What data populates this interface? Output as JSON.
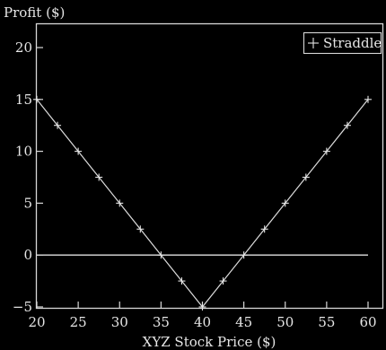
{
  "chart_data": {
    "type": "line",
    "title": "",
    "xlabel": "XYZ Stock Price ($)",
    "ylabel": "Profit ($)",
    "xlim": [
      20,
      60
    ],
    "ylim": [
      -5,
      23
    ],
    "x_ticks": [
      20,
      25,
      30,
      35,
      40,
      45,
      50,
      55,
      60
    ],
    "y_ticks": [
      -5,
      0,
      5,
      10,
      15,
      20
    ],
    "y_tick_labels": [
      "−5",
      "0",
      "5",
      "10",
      "15",
      "20"
    ],
    "x_tick_labels": [
      "20",
      "25",
      "30",
      "35",
      "40",
      "45",
      "50",
      "55",
      "60"
    ],
    "grid": false,
    "legend_position": "top-right",
    "reference_lines": [
      {
        "axis": "y",
        "value": 0
      }
    ],
    "series": [
      {
        "name": "Straddle",
        "marker": "plus",
        "color": "#dcdcdc",
        "x": [
          20,
          22.5,
          25,
          27.5,
          30,
          32.5,
          35,
          37.5,
          40,
          42.5,
          45,
          47.5,
          50,
          52.5,
          55,
          57.5,
          60
        ],
        "y": [
          15,
          12.5,
          10,
          7.5,
          5,
          2.5,
          0,
          -2.5,
          -5,
          -2.5,
          0,
          2.5,
          5,
          7.5,
          10,
          12.5,
          15
        ]
      }
    ]
  }
}
